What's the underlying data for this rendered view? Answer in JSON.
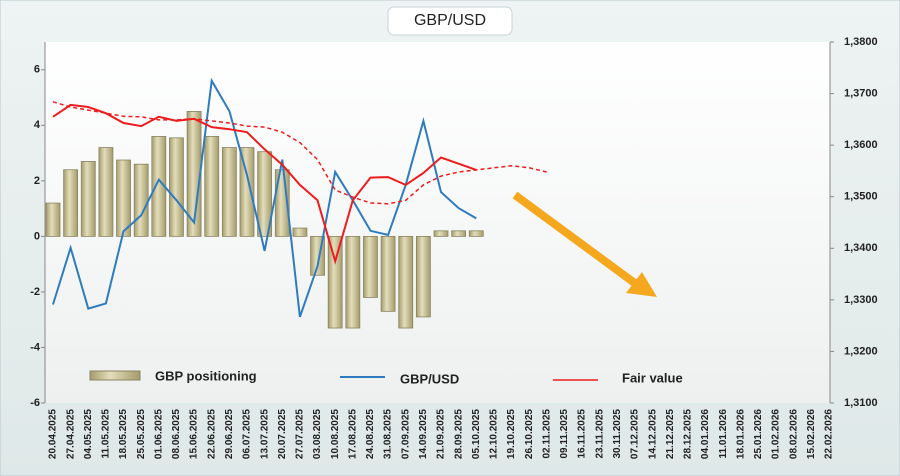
{
  "chart_data": {
    "type": "bar",
    "title": "GBP/USD",
    "categories": [
      "20.04.2025",
      "27.04.2025",
      "04.05.2025",
      "11.05.2025",
      "18.05.2025",
      "25.05.2025",
      "01.06.2025",
      "08.06.2025",
      "15.06.2025",
      "22.06.2025",
      "29.06.2025",
      "06.07.2025",
      "13.07.2025",
      "20.07.2025",
      "27.07.2025",
      "03.08.2025",
      "10.08.2025",
      "17.08.2025",
      "24.08.2025",
      "31.08.2025",
      "07.09.2025",
      "14.09.2025",
      "21.09.2025",
      "28.09.2025",
      "05.10.2025",
      "12.10.2025",
      "19.10.2025",
      "26.10.2025",
      "02.11.2025",
      "09.11.2025",
      "16.11.2025",
      "23.11.2025",
      "30.11.2025",
      "07.12.2025",
      "14.12.2025",
      "21.12.2025",
      "28.12.2025",
      "04.01.2026",
      "11.01.2026",
      "18.01.2026",
      "25.01.2026",
      "01.02.2026",
      "08.02.2026",
      "15.02.2026",
      "22.02.2026"
    ],
    "series": [
      {
        "name": "GBP positioning",
        "type": "bar",
        "color": "#c9c29b",
        "values": [
          1.2,
          2.4,
          2.7,
          3.2,
          2.75,
          2.6,
          3.6,
          3.55,
          4.5,
          3.6,
          3.2,
          3.2,
          3.05,
          2.4,
          0.3,
          -1.4,
          -3.3,
          -3.3,
          -2.2,
          -2.7,
          -3.3,
          -2.9,
          0.2,
          0.2,
          0.2,
          null,
          null,
          null,
          null,
          null,
          null,
          null,
          null,
          null,
          null,
          null,
          null,
          null,
          null,
          null,
          null,
          null,
          null,
          null,
          null
        ]
      },
      {
        "name": "GBP/USD",
        "type": "line",
        "axis": "y2",
        "color": "#2f7bbf",
        "values": [
          1.3291,
          1.3401,
          1.3283,
          1.3293,
          1.3433,
          1.3464,
          1.3533,
          1.3493,
          1.345,
          1.3725,
          1.3666,
          1.3542,
          1.3395,
          1.3572,
          1.3267,
          1.3365,
          1.3548,
          1.3493,
          1.3434,
          1.3426,
          1.3523,
          1.3647,
          1.3509,
          1.3478,
          1.3458,
          null,
          null,
          null,
          null,
          null,
          null,
          null,
          null,
          null,
          null,
          null,
          null,
          null,
          null,
          null,
          null,
          null,
          null,
          null,
          null
        ]
      },
      {
        "name": "Fair value",
        "type": "line",
        "axis": "y2",
        "color": "#ee1c1c",
        "values": [
          1.3655,
          1.3678,
          1.3674,
          1.3662,
          1.3643,
          1.3637,
          1.3655,
          1.3647,
          1.3651,
          1.3635,
          1.3631,
          1.3625,
          1.3592,
          1.3562,
          1.3523,
          1.3493,
          1.3375,
          1.3493,
          1.3537,
          1.3538,
          1.3523,
          1.3546,
          1.3576,
          1.3564,
          1.3552,
          null,
          null,
          null,
          null,
          null,
          null,
          null,
          null,
          null,
          null,
          null,
          null,
          null,
          null,
          null,
          null,
          null,
          null,
          null,
          null
        ]
      },
      {
        "type": "line",
        "axis": "y2",
        "color": "#ee1c1c",
        "dash": true,
        "values": [
          1.3684,
          1.3674,
          1.3668,
          1.3662,
          1.3656,
          1.3655,
          1.3649,
          1.3649,
          1.3651,
          1.3647,
          1.3643,
          1.3637,
          1.3635,
          1.3625,
          1.3605,
          1.3572,
          1.3513,
          1.3499,
          1.3488,
          1.3486,
          1.3493,
          1.3523,
          1.354,
          1.3548,
          1.3552,
          1.3556,
          1.356,
          1.3556,
          1.3548,
          null,
          null,
          null,
          null,
          null,
          null,
          null,
          null,
          null,
          null,
          null,
          null,
          null,
          null,
          null,
          null
        ]
      }
    ],
    "ylim": [
      -6,
      7
    ],
    "yticks": [
      -6,
      -4,
      -2,
      0,
      2,
      4,
      6
    ],
    "y2lim": [
      1.31,
      1.38
    ],
    "y2ticks": [
      {
        "value": 1.31,
        "label": "1,3100"
      },
      {
        "value": 1.32,
        "label": "1,3200"
      },
      {
        "value": 1.33,
        "label": "1,3300"
      },
      {
        "value": 1.34,
        "label": "1,3400"
      },
      {
        "value": 1.35,
        "label": "1,3500"
      },
      {
        "value": 1.36,
        "label": "1,3600"
      },
      {
        "value": 1.37,
        "label": "1,3700"
      },
      {
        "value": 1.38,
        "label": "1,3800"
      }
    ]
  }
}
